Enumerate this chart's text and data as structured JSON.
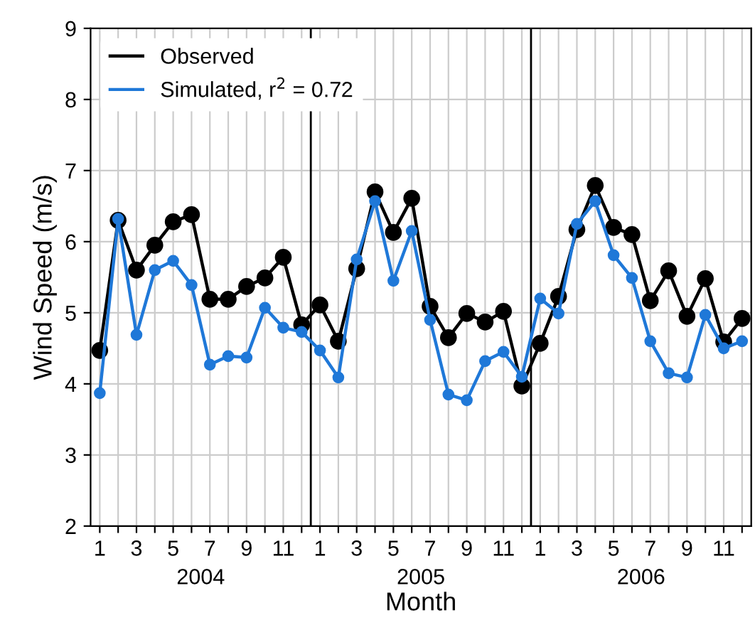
{
  "chart_data": {
    "type": "line",
    "xlabel": "Month",
    "ylabel": "Wind Speed (m/s)",
    "categories": [
      "1",
      null,
      "3",
      null,
      "5",
      null,
      "7",
      null,
      "9",
      null,
      "11",
      null,
      "1",
      null,
      "3",
      null,
      "5",
      null,
      "7",
      null,
      "9",
      null,
      "11",
      null,
      "1",
      null,
      "3",
      null,
      "5",
      null,
      "7",
      null,
      "9",
      null,
      "11",
      null
    ],
    "series": [
      {
        "name": "Observed",
        "color": "#000000",
        "values": [
          4.47,
          6.3,
          5.6,
          5.95,
          6.28,
          6.38,
          5.19,
          5.19,
          5.37,
          5.49,
          5.78,
          4.83,
          5.11,
          4.6,
          5.62,
          6.7,
          6.13,
          6.61,
          5.09,
          4.65,
          4.99,
          4.87,
          5.02,
          3.97,
          4.57,
          5.23,
          6.17,
          6.79,
          6.2,
          6.1,
          5.17,
          5.59,
          4.95,
          5.48,
          4.59,
          4.92
        ]
      },
      {
        "name": "Simulated, r$^{2}$ = 0.72",
        "color": "#1f78d8",
        "values": [
          3.87,
          6.32,
          4.69,
          5.6,
          5.73,
          5.39,
          4.27,
          4.39,
          4.37,
          5.07,
          4.79,
          4.73,
          4.47,
          4.09,
          5.75,
          6.57,
          5.45,
          6.15,
          4.9,
          3.85,
          3.77,
          4.32,
          4.45,
          4.1,
          5.2,
          4.99,
          6.25,
          6.57,
          5.81,
          5.49,
          4.6,
          4.15,
          4.09,
          4.97,
          4.5,
          4.6
        ]
      }
    ],
    "annotations": [
      "2004",
      "2005",
      "2006"
    ],
    "ylim": [
      2,
      9
    ],
    "yticks": [
      2,
      3,
      4,
      5,
      6,
      7,
      8,
      9
    ],
    "grid": true,
    "legend": "top left",
    "marker": "circle",
    "line_style": "solid"
  }
}
